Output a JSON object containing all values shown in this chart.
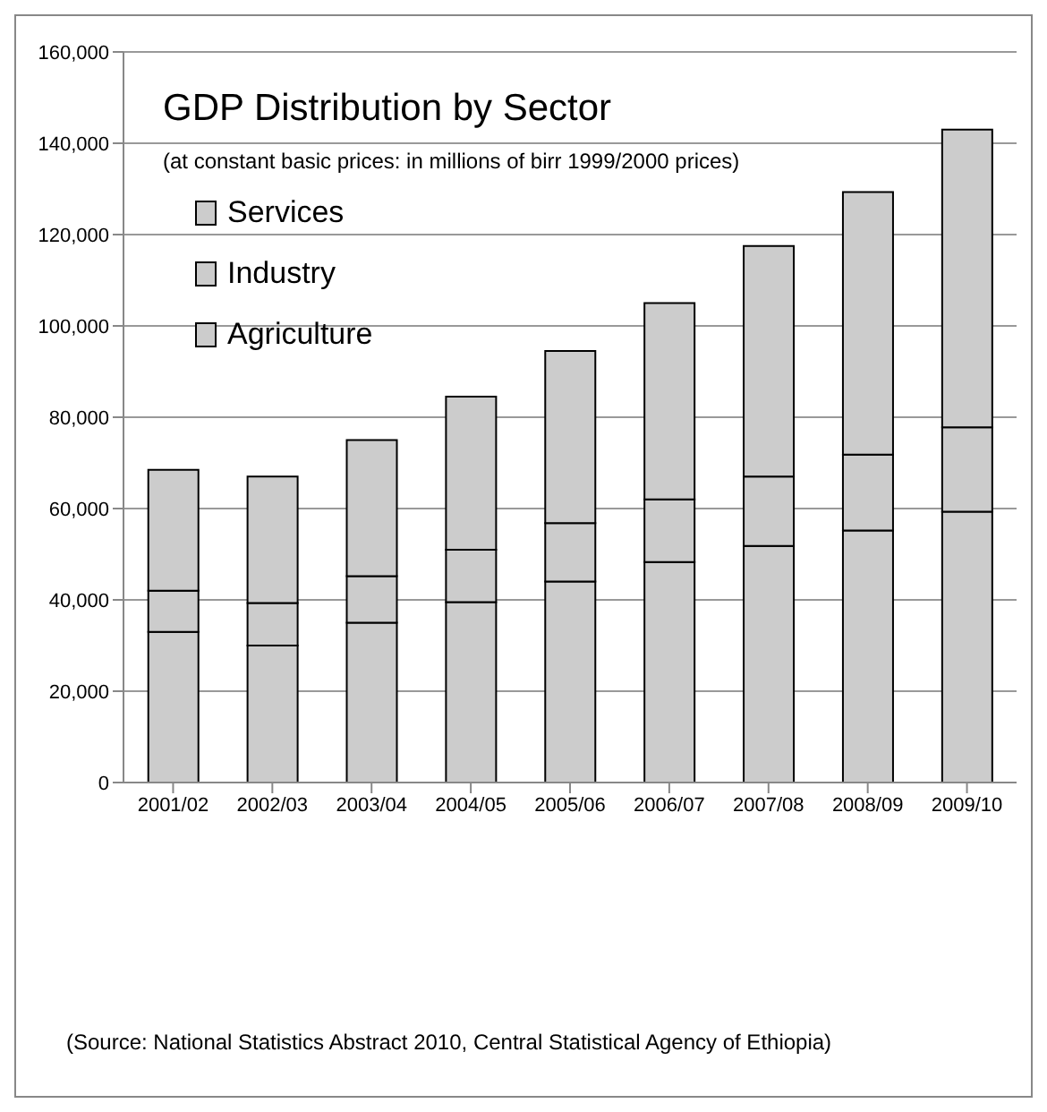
{
  "chart_data": {
    "type": "bar",
    "stacked": true,
    "title": "GDP Distribution by Sector",
    "subtitle": "(at constant basic prices: in millions of birr 1999/2000 prices)",
    "categories": [
      "2001/02",
      "2002/03",
      "2003/04",
      "2004/05",
      "2005/06",
      "2006/07",
      "2007/08",
      "2008/09",
      "2009/10"
    ],
    "series": [
      {
        "name": "Agriculture",
        "color": "#cccccc",
        "values": [
          33000,
          30000,
          35000,
          39500,
          44000,
          48300,
          51800,
          55200,
          59300
        ]
      },
      {
        "name": "Industry",
        "color": "#cccccc",
        "values": [
          9000,
          9300,
          10200,
          11500,
          12800,
          13700,
          15200,
          16600,
          18500
        ]
      },
      {
        "name": "Services",
        "color": "#cccccc",
        "values": [
          26500,
          27700,
          29800,
          33500,
          37700,
          43000,
          50500,
          57500,
          65200
        ]
      }
    ],
    "ylim": [
      0,
      160000
    ],
    "yticks": [
      {
        "value": 0,
        "label": "0"
      },
      {
        "value": 20000,
        "label": "20,000"
      },
      {
        "value": 40000,
        "label": "40,000"
      },
      {
        "value": 60000,
        "label": "60,000"
      },
      {
        "value": 80000,
        "label": "80,000"
      },
      {
        "value": 100000,
        "label": "100,000"
      },
      {
        "value": 120000,
        "label": "120,000"
      },
      {
        "value": 140000,
        "label": "140,000"
      },
      {
        "value": 160000,
        "label": "160,000"
      }
    ],
    "grid": "y",
    "legend": "top left",
    "annotations": [
      "(Source: National Statistics Abstract 2010, Central Statistical Agency of Ethiopia)"
    ]
  }
}
